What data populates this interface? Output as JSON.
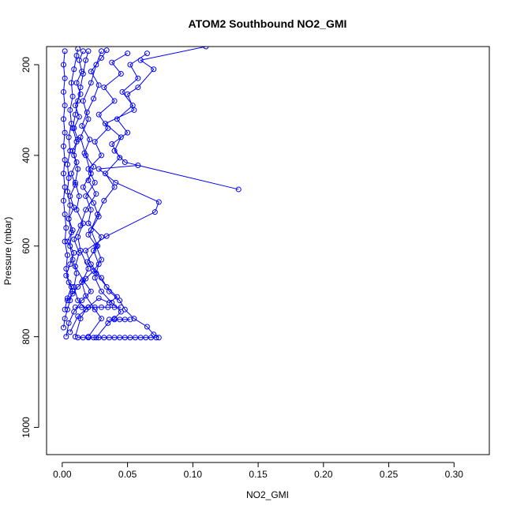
{
  "chart_data": {
    "type": "line",
    "title": "ATOM2 Southbound NO2_GMI",
    "xlabel": "NO2_GMI",
    "ylabel": "Pressure (mbar)",
    "xlim": [
      -0.012,
      0.327
    ],
    "ylim": [
      1060,
      160
    ],
    "y_reversed": true,
    "grid": false,
    "x_ticks": [
      0.0,
      0.05,
      0.1,
      0.15,
      0.2,
      0.25,
      0.3
    ],
    "x_tick_labels": [
      "0.00",
      "0.05",
      "0.10",
      "0.15",
      "0.20",
      "0.25",
      "0.30"
    ],
    "y_ticks": [
      200,
      400,
      600,
      800,
      1000
    ],
    "y_tick_labels": [
      "200",
      "400",
      "600",
      "800",
      "1000"
    ],
    "series_color": "#0000ff",
    "series": [
      {
        "points": [
          {
            "x": 0.001,
            "y": 780
          },
          {
            "x": 0.002,
            "y": 760
          },
          {
            "x": 0.004,
            "y": 740
          },
          {
            "x": 0.006,
            "y": 720
          },
          {
            "x": 0.008,
            "y": 700
          },
          {
            "x": 0.005,
            "y": 680
          },
          {
            "x": 0.003,
            "y": 650
          },
          {
            "x": 0.004,
            "y": 620
          },
          {
            "x": 0.002,
            "y": 590
          },
          {
            "x": 0.003,
            "y": 560
          },
          {
            "x": 0.002,
            "y": 530
          },
          {
            "x": 0.001,
            "y": 500
          },
          {
            "x": 0.002,
            "y": 470
          },
          {
            "x": 0.001,
            "y": 440
          },
          {
            "x": 0.002,
            "y": 410
          },
          {
            "x": 0.001,
            "y": 380
          },
          {
            "x": 0.002,
            "y": 350
          },
          {
            "x": 0.001,
            "y": 320
          },
          {
            "x": 0.002,
            "y": 290
          },
          {
            "x": 0.001,
            "y": 260
          },
          {
            "x": 0.002,
            "y": 230
          },
          {
            "x": 0.001,
            "y": 200
          },
          {
            "x": 0.002,
            "y": 170
          }
        ]
      },
      {
        "points": [
          {
            "x": 0.01,
            "y": 800
          },
          {
            "x": 0.014,
            "y": 760
          },
          {
            "x": 0.018,
            "y": 740
          },
          {
            "x": 0.012,
            "y": 720
          },
          {
            "x": 0.009,
            "y": 690
          },
          {
            "x": 0.011,
            "y": 660
          },
          {
            "x": 0.008,
            "y": 630
          },
          {
            "x": 0.006,
            "y": 600
          },
          {
            "x": 0.007,
            "y": 570
          },
          {
            "x": 0.005,
            "y": 540
          },
          {
            "x": 0.006,
            "y": 510
          },
          {
            "x": 0.004,
            "y": 480
          },
          {
            "x": 0.005,
            "y": 450
          },
          {
            "x": 0.004,
            "y": 420
          },
          {
            "x": 0.006,
            "y": 390
          },
          {
            "x": 0.005,
            "y": 360
          },
          {
            "x": 0.007,
            "y": 330
          },
          {
            "x": 0.006,
            "y": 300
          },
          {
            "x": 0.008,
            "y": 270
          },
          {
            "x": 0.007,
            "y": 240
          },
          {
            "x": 0.009,
            "y": 210
          },
          {
            "x": 0.011,
            "y": 180
          },
          {
            "x": 0.012,
            "y": 165
          }
        ]
      },
      {
        "points": [
          {
            "x": 0.02,
            "y": 800
          },
          {
            "x": 0.03,
            "y": 760
          },
          {
            "x": 0.025,
            "y": 740
          },
          {
            "x": 0.018,
            "y": 710
          },
          {
            "x": 0.015,
            "y": 680
          },
          {
            "x": 0.02,
            "y": 650
          },
          {
            "x": 0.014,
            "y": 610
          },
          {
            "x": 0.012,
            "y": 580
          },
          {
            "x": 0.016,
            "y": 550
          },
          {
            "x": 0.011,
            "y": 520
          },
          {
            "x": 0.013,
            "y": 490
          },
          {
            "x": 0.01,
            "y": 460
          },
          {
            "x": 0.012,
            "y": 430
          },
          {
            "x": 0.009,
            "y": 400
          },
          {
            "x": 0.011,
            "y": 370
          },
          {
            "x": 0.008,
            "y": 340
          },
          {
            "x": 0.01,
            "y": 310
          },
          {
            "x": 0.012,
            "y": 280
          },
          {
            "x": 0.014,
            "y": 250
          },
          {
            "x": 0.016,
            "y": 220
          },
          {
            "x": 0.018,
            "y": 190
          },
          {
            "x": 0.02,
            "y": 170
          }
        ]
      },
      {
        "points": [
          {
            "x": 0.026,
            "y": 802
          },
          {
            "x": 0.035,
            "y": 770
          },
          {
            "x": 0.04,
            "y": 760
          },
          {
            "x": 0.045,
            "y": 745
          },
          {
            "x": 0.038,
            "y": 725
          },
          {
            "x": 0.03,
            "y": 700
          },
          {
            "x": 0.025,
            "y": 670
          },
          {
            "x": 0.028,
            "y": 640
          },
          {
            "x": 0.024,
            "y": 610
          },
          {
            "x": 0.03,
            "y": 580
          },
          {
            "x": 0.02,
            "y": 550
          },
          {
            "x": 0.022,
            "y": 520
          },
          {
            "x": 0.018,
            "y": 490
          },
          {
            "x": 0.025,
            "y": 460
          },
          {
            "x": 0.02,
            "y": 430
          },
          {
            "x": 0.03,
            "y": 400
          },
          {
            "x": 0.025,
            "y": 370
          },
          {
            "x": 0.035,
            "y": 340
          },
          {
            "x": 0.028,
            "y": 310
          },
          {
            "x": 0.04,
            "y": 280
          },
          {
            "x": 0.032,
            "y": 250
          },
          {
            "x": 0.045,
            "y": 220
          },
          {
            "x": 0.038,
            "y": 195
          },
          {
            "x": 0.05,
            "y": 175
          }
        ]
      },
      {
        "points": [
          {
            "x": 0.074,
            "y": 802
          },
          {
            "x": 0.07,
            "y": 795
          },
          {
            "x": 0.065,
            "y": 778
          },
          {
            "x": 0.055,
            "y": 760
          },
          {
            "x": 0.048,
            "y": 740
          },
          {
            "x": 0.044,
            "y": 720
          },
          {
            "x": 0.036,
            "y": 700
          },
          {
            "x": 0.03,
            "y": 670
          },
          {
            "x": 0.022,
            "y": 640
          },
          {
            "x": 0.018,
            "y": 610
          },
          {
            "x": 0.034,
            "y": 578
          },
          {
            "x": 0.071,
            "y": 525
          },
          {
            "x": 0.074,
            "y": 503
          },
          {
            "x": 0.041,
            "y": 460
          },
          {
            "x": 0.028,
            "y": 430
          },
          {
            "x": 0.058,
            "y": 422
          },
          {
            "x": 0.135,
            "y": 475
          },
          {
            "x": 0.048,
            "y": 415
          },
          {
            "x": 0.04,
            "y": 390
          },
          {
            "x": 0.045,
            "y": 360
          },
          {
            "x": 0.033,
            "y": 330
          },
          {
            "x": 0.055,
            "y": 300
          },
          {
            "x": 0.05,
            "y": 265
          },
          {
            "x": 0.058,
            "y": 250
          },
          {
            "x": 0.07,
            "y": 210
          },
          {
            "x": 0.06,
            "y": 190
          },
          {
            "x": 0.11,
            "y": 160
          }
        ]
      },
      {
        "points": [
          {
            "x": 0.003,
            "y": 800
          },
          {
            "x": 0.005,
            "y": 770
          },
          {
            "x": 0.009,
            "y": 745
          },
          {
            "x": 0.015,
            "y": 720
          },
          {
            "x": 0.022,
            "y": 700
          },
          {
            "x": 0.016,
            "y": 675
          },
          {
            "x": 0.01,
            "y": 645
          },
          {
            "x": 0.013,
            "y": 615
          },
          {
            "x": 0.009,
            "y": 585
          },
          {
            "x": 0.014,
            "y": 555
          },
          {
            "x": 0.018,
            "y": 520
          },
          {
            "x": 0.026,
            "y": 485
          },
          {
            "x": 0.02,
            "y": 455
          },
          {
            "x": 0.024,
            "y": 425
          },
          {
            "x": 0.017,
            "y": 395
          },
          {
            "x": 0.021,
            "y": 365
          },
          {
            "x": 0.015,
            "y": 335
          },
          {
            "x": 0.019,
            "y": 305
          },
          {
            "x": 0.024,
            "y": 275
          },
          {
            "x": 0.028,
            "y": 245
          },
          {
            "x": 0.022,
            "y": 215
          },
          {
            "x": 0.03,
            "y": 185
          },
          {
            "x": 0.034,
            "y": 168
          }
        ]
      },
      {
        "points": [
          {
            "x": 0.006,
            "y": 790
          },
          {
            "x": 0.012,
            "y": 755
          },
          {
            "x": 0.02,
            "y": 735
          },
          {
            "x": 0.028,
            "y": 715
          },
          {
            "x": 0.036,
            "y": 725
          },
          {
            "x": 0.042,
            "y": 712
          },
          {
            "x": 0.034,
            "y": 690
          },
          {
            "x": 0.026,
            "y": 660
          },
          {
            "x": 0.019,
            "y": 635
          },
          {
            "x": 0.027,
            "y": 600
          },
          {
            "x": 0.022,
            "y": 565
          },
          {
            "x": 0.027,
            "y": 530
          },
          {
            "x": 0.032,
            "y": 500
          },
          {
            "x": 0.04,
            "y": 470
          },
          {
            "x": 0.033,
            "y": 440
          },
          {
            "x": 0.044,
            "y": 405
          },
          {
            "x": 0.038,
            "y": 375
          },
          {
            "x": 0.05,
            "y": 350
          },
          {
            "x": 0.042,
            "y": 320
          },
          {
            "x": 0.054,
            "y": 290
          },
          {
            "x": 0.046,
            "y": 260
          },
          {
            "x": 0.058,
            "y": 230
          },
          {
            "x": 0.052,
            "y": 200
          },
          {
            "x": 0.065,
            "y": 175
          }
        ]
      },
      {
        "points": [
          {
            "x": 0.002,
            "y": 740
          },
          {
            "x": 0.004,
            "y": 715
          },
          {
            "x": 0.007,
            "y": 690
          },
          {
            "x": 0.003,
            "y": 665
          },
          {
            "x": 0.006,
            "y": 640
          },
          {
            "x": 0.009,
            "y": 615
          },
          {
            "x": 0.004,
            "y": 590
          },
          {
            "x": 0.008,
            "y": 565
          },
          {
            "x": 0.005,
            "y": 540
          },
          {
            "x": 0.009,
            "y": 515
          },
          {
            "x": 0.006,
            "y": 490
          },
          {
            "x": 0.01,
            "y": 465
          },
          {
            "x": 0.007,
            "y": 440
          },
          {
            "x": 0.011,
            "y": 415
          },
          {
            "x": 0.008,
            "y": 390
          },
          {
            "x": 0.012,
            "y": 365
          },
          {
            "x": 0.009,
            "y": 340
          },
          {
            "x": 0.013,
            "y": 315
          },
          {
            "x": 0.01,
            "y": 290
          },
          {
            "x": 0.014,
            "y": 265
          },
          {
            "x": 0.011,
            "y": 240
          },
          {
            "x": 0.015,
            "y": 215
          },
          {
            "x": 0.013,
            "y": 190
          },
          {
            "x": 0.016,
            "y": 170
          }
        ]
      },
      {
        "points": [
          {
            "x": 0.012,
            "y": 802
          },
          {
            "x": 0.016,
            "y": 802
          },
          {
            "x": 0.02,
            "y": 802
          },
          {
            "x": 0.024,
            "y": 802
          },
          {
            "x": 0.028,
            "y": 802
          },
          {
            "x": 0.032,
            "y": 802
          },
          {
            "x": 0.036,
            "y": 802
          },
          {
            "x": 0.04,
            "y": 802
          },
          {
            "x": 0.044,
            "y": 802
          },
          {
            "x": 0.048,
            "y": 802
          },
          {
            "x": 0.052,
            "y": 802
          },
          {
            "x": 0.056,
            "y": 802
          },
          {
            "x": 0.06,
            "y": 802
          },
          {
            "x": 0.064,
            "y": 802
          },
          {
            "x": 0.068,
            "y": 802
          },
          {
            "x": 0.072,
            "y": 802
          }
        ]
      },
      {
        "points": [
          {
            "x": 0.036,
            "y": 762
          },
          {
            "x": 0.04,
            "y": 762
          },
          {
            "x": 0.044,
            "y": 762
          },
          {
            "x": 0.048,
            "y": 762
          },
          {
            "x": 0.052,
            "y": 762
          }
        ]
      },
      {
        "points": [
          {
            "x": 0.01,
            "y": 735
          },
          {
            "x": 0.015,
            "y": 735
          },
          {
            "x": 0.02,
            "y": 735
          },
          {
            "x": 0.025,
            "y": 735
          },
          {
            "x": 0.03,
            "y": 735
          },
          {
            "x": 0.035,
            "y": 735
          },
          {
            "x": 0.04,
            "y": 735
          },
          {
            "x": 0.045,
            "y": 735
          }
        ]
      },
      {
        "points": [
          {
            "x": 0.004,
            "y": 720
          },
          {
            "x": 0.008,
            "y": 705
          },
          {
            "x": 0.012,
            "y": 690
          },
          {
            "x": 0.018,
            "y": 672
          },
          {
            "x": 0.024,
            "y": 655
          },
          {
            "x": 0.03,
            "y": 630
          },
          {
            "x": 0.026,
            "y": 600
          },
          {
            "x": 0.02,
            "y": 575
          },
          {
            "x": 0.028,
            "y": 535
          },
          {
            "x": 0.024,
            "y": 505
          },
          {
            "x": 0.016,
            "y": 470
          },
          {
            "x": 0.022,
            "y": 440
          },
          {
            "x": 0.018,
            "y": 400
          },
          {
            "x": 0.014,
            "y": 360
          },
          {
            "x": 0.02,
            "y": 320
          },
          {
            "x": 0.016,
            "y": 280
          },
          {
            "x": 0.022,
            "y": 240
          },
          {
            "x": 0.026,
            "y": 200
          },
          {
            "x": 0.03,
            "y": 170
          }
        ]
      }
    ]
  }
}
